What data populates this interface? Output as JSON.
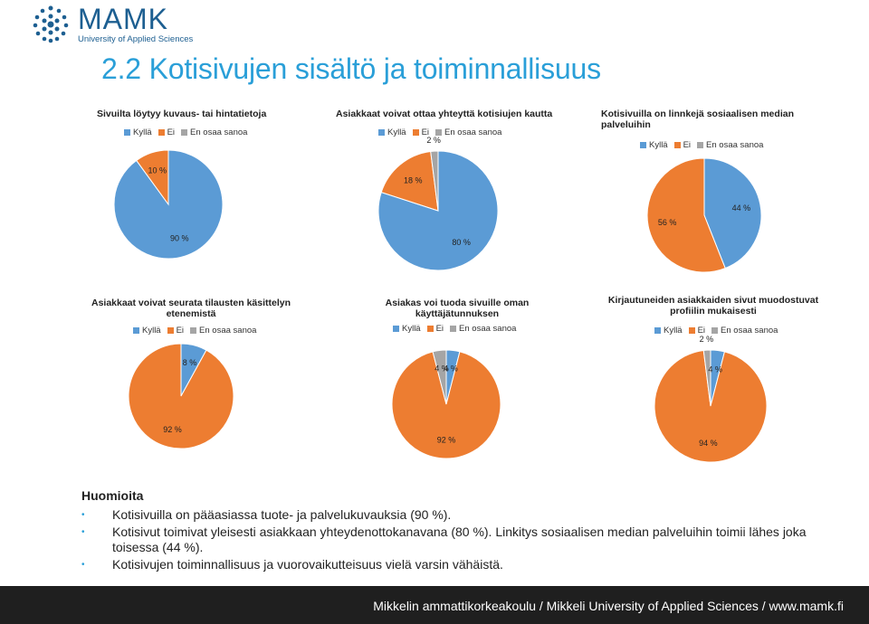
{
  "logo": {
    "brand": "MAMK",
    "tagline": "University of Applied Sciences"
  },
  "title": "2.2 Kotisivujen sisältö ja toiminnallisuus",
  "colors": {
    "kylla": "#5b9bd5",
    "ei": "#ed7d31",
    "en_osaa": "#a5a5a5",
    "title": "#2a9fd8",
    "footer_bg": "#1f1f1f"
  },
  "chart_data": [
    {
      "type": "pie",
      "title": "Sivuilta löytyy kuvaus- tai hintatietoja",
      "legend": [
        "Kyllä",
        "Ei",
        "En osaa sanoa"
      ],
      "values": [
        90,
        10,
        0
      ],
      "labels": [
        "90 %",
        "10 %",
        ""
      ]
    },
    {
      "type": "pie",
      "title": "Asiakkaat voivat ottaa yhteyttä kotisiujen kautta",
      "legend": [
        "Kyllä",
        "Ei",
        "En osaa sanoa"
      ],
      "values": [
        80,
        18,
        2
      ],
      "labels": [
        "80 %",
        "18 %",
        "2 %"
      ]
    },
    {
      "type": "pie",
      "title": "Kotisivuilla on linnkejä sosiaalisen median palveluihin",
      "legend": [
        "Kyllä",
        "Ei",
        "En osaa sanoa"
      ],
      "values": [
        44,
        56,
        0
      ],
      "labels": [
        "44 %",
        "56 %",
        ""
      ]
    },
    {
      "type": "pie",
      "title": "Asiakkaat voivat seurata tilausten käsittelyn etenemistä",
      "legend": [
        "Kyllä",
        "Ei",
        "En osaa sanoa"
      ],
      "values": [
        8,
        92,
        0
      ],
      "labels": [
        "8 %",
        "92 %",
        ""
      ]
    },
    {
      "type": "pie",
      "title": "Asiakas voi tuoda sivuille oman käyttäjätunnuksen",
      "legend": [
        "Kyllä",
        "Ei",
        "En osaa sanoa"
      ],
      "values": [
        4,
        92,
        4
      ],
      "labels": [
        "4 %",
        "92 %",
        "4 %"
      ]
    },
    {
      "type": "pie",
      "title": "Kirjautuneiden asiakkaiden sivut muodostuvat profiilin mukaisesti",
      "legend": [
        "Kyllä",
        "Ei",
        "En osaa sanoa"
      ],
      "values": [
        4,
        94,
        2
      ],
      "labels": [
        "4 %",
        "94 %",
        "2 %"
      ]
    }
  ],
  "notes": {
    "title": "Huomioita",
    "items": [
      "Kotisivuilla on pääasiassa tuote- ja palvelukuvauksia (90 %).",
      "Kotisivut toimivat yleisesti asiakkaan yhteydenottokanavana (80 %). Linkitys sosiaalisen median palveluihin toimii lähes joka toisessa (44 %).",
      "Kotisivujen toiminnallisuus ja vuorovaikutteisuus vielä varsin vähäistä."
    ]
  },
  "footer": "Mikkelin ammattikorkeakoulu / Mikkeli University of Applied Sciences / www.mamk.fi"
}
